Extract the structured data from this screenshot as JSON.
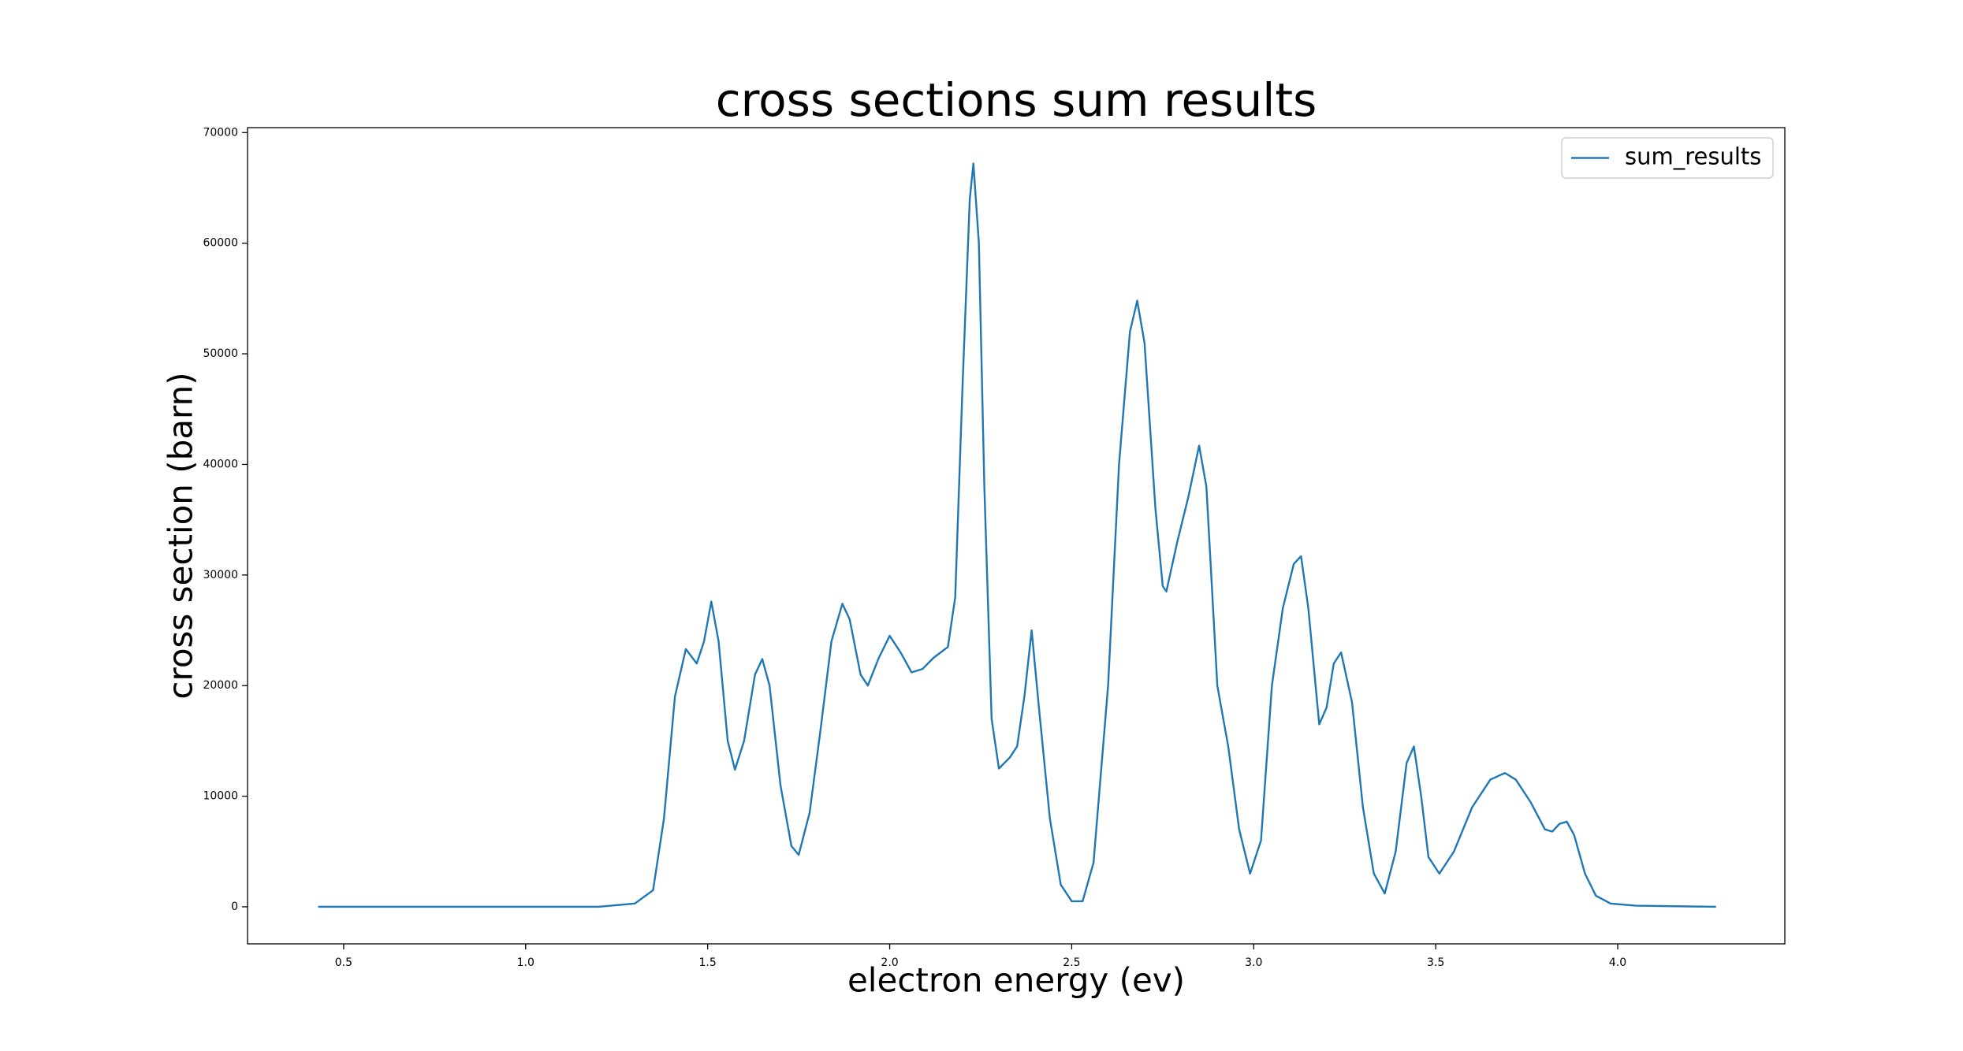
{
  "chart_data": {
    "type": "line",
    "title": "cross sections sum results",
    "x_label": "electron energy (ev)",
    "y_label": "cross section (barn)",
    "legend_position": "upper right",
    "xlim": [
      0.236,
      4.459
    ],
    "ylim": [
      -3350,
      70450
    ],
    "xticks": [
      0.5,
      {
        "value": 1,
        "label": "1.0"
      },
      1.5,
      {
        "value": 2,
        "label": "2.0"
      },
      2.5,
      {
        "value": 3,
        "label": "3.0"
      },
      3.5,
      {
        "value": 4,
        "label": "4.0"
      }
    ],
    "yticks": [
      0,
      10000,
      20000,
      30000,
      40000,
      50000,
      60000,
      70000
    ],
    "x": [
      0.43,
      1.2,
      1.3,
      1.35,
      1.38,
      1.41,
      1.44,
      1.47,
      1.49,
      1.51,
      1.53,
      1.555,
      1.575,
      1.6,
      1.63,
      1.65,
      1.67,
      1.7,
      1.73,
      1.75,
      1.78,
      1.81,
      1.84,
      1.87,
      1.89,
      1.92,
      1.94,
      1.97,
      2.0,
      2.03,
      2.06,
      2.09,
      2.12,
      2.16,
      2.18,
      2.2,
      2.22,
      2.23,
      2.245,
      2.26,
      2.28,
      2.3,
      2.33,
      2.35,
      2.37,
      2.39,
      2.41,
      2.44,
      2.47,
      2.5,
      2.53,
      2.56,
      2.6,
      2.63,
      2.66,
      2.68,
      2.7,
      2.73,
      2.75,
      2.76,
      2.79,
      2.82,
      2.85,
      2.87,
      2.9,
      2.93,
      2.96,
      2.99,
      3.02,
      3.05,
      3.08,
      3.11,
      3.13,
      3.15,
      3.18,
      3.2,
      3.22,
      3.24,
      3.27,
      3.3,
      3.33,
      3.36,
      3.39,
      3.42,
      3.44,
      3.46,
      3.48,
      3.51,
      3.55,
      3.6,
      3.65,
      3.69,
      3.72,
      3.76,
      3.8,
      3.82,
      3.84,
      3.86,
      3.88,
      3.91,
      3.94,
      3.98,
      4.05,
      4.27
    ],
    "series": [
      {
        "name": "sum_results",
        "color": "#1f77b4",
        "values": [
          0,
          0,
          300,
          1500,
          8000,
          19000,
          23300,
          22000,
          24000,
          27600,
          24000,
          15000,
          12400,
          15000,
          21000,
          22400,
          20000,
          11000,
          5500,
          4700,
          8500,
          16000,
          24000,
          27400,
          26000,
          21000,
          20000,
          22500,
          24500,
          23000,
          21200,
          21500,
          22500,
          23500,
          28000,
          47000,
          64000,
          67200,
          60000,
          38000,
          17000,
          12500,
          13500,
          14500,
          19000,
          25000,
          18000,
          8000,
          2000,
          500,
          500,
          4000,
          20000,
          40000,
          52000,
          54800,
          51000,
          36000,
          29000,
          28500,
          33000,
          37000,
          41700,
          38000,
          20000,
          14500,
          7000,
          3000,
          6000,
          20000,
          27000,
          31000,
          31700,
          27000,
          16500,
          18000,
          22000,
          23000,
          18500,
          9000,
          3000,
          1200,
          5000,
          13000,
          14500,
          10000,
          4500,
          3000,
          5000,
          9000,
          11500,
          12100,
          11500,
          9500,
          7000,
          6800,
          7500,
          7700,
          6500,
          3000,
          1000,
          300,
          100,
          0
        ]
      }
    ]
  }
}
